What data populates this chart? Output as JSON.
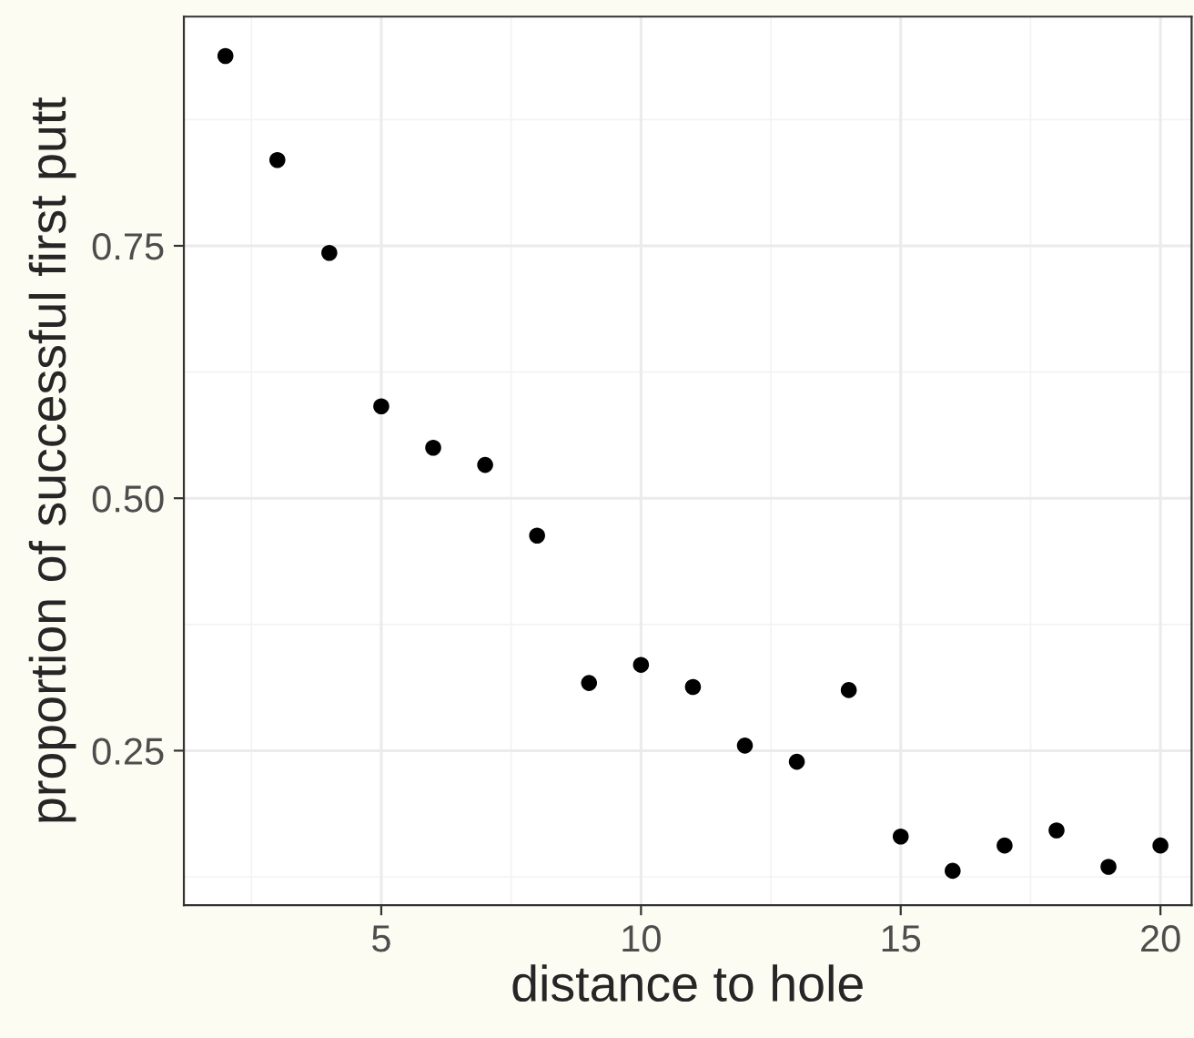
{
  "chart_data": {
    "type": "scatter",
    "xlabel": "distance to hole",
    "ylabel": "proportion of successful first putt",
    "x": [
      2,
      3,
      4,
      5,
      6,
      7,
      8,
      9,
      10,
      11,
      12,
      13,
      14,
      15,
      16,
      17,
      18,
      19,
      20
    ],
    "values": [
      0.938,
      0.835,
      0.743,
      0.591,
      0.55,
      0.533,
      0.463,
      0.317,
      0.335,
      0.313,
      0.255,
      0.239,
      0.31,
      0.165,
      0.131,
      0.156,
      0.171,
      0.135,
      0.156
    ],
    "color": "#000000",
    "marker": "circle",
    "xlim": [
      1.2,
      20.6
    ],
    "ylim": [
      0.097,
      0.977
    ],
    "xticks": [
      5,
      10,
      15,
      20
    ],
    "yticks": [
      0.25,
      {
        "value": 0.5,
        "label": "0.50"
      },
      0.75
    ],
    "grid": true,
    "legend": false
  }
}
